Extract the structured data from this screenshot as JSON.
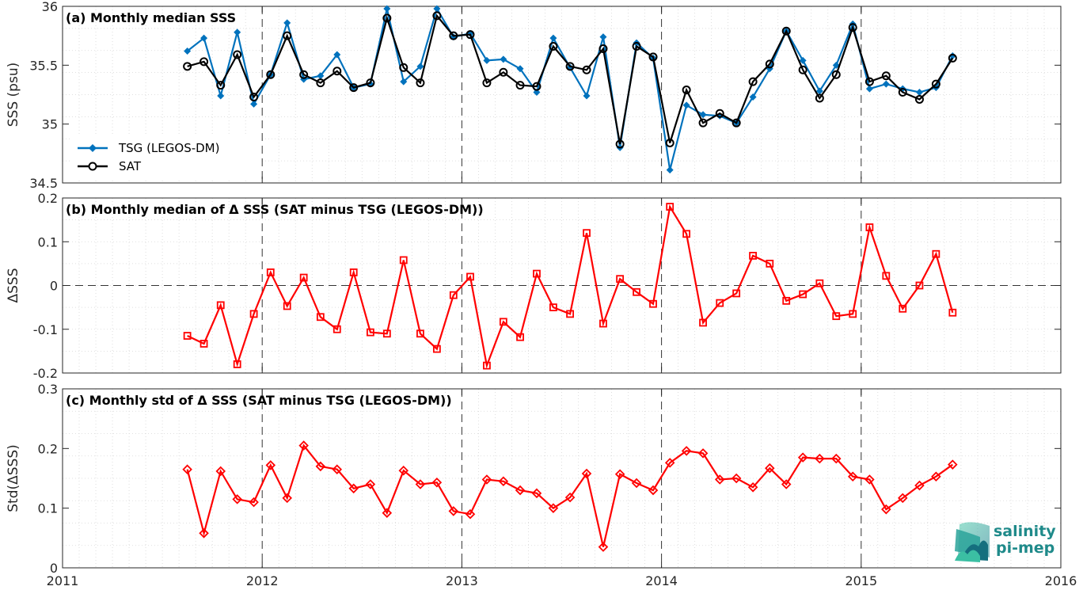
{
  "chart_data": [
    {
      "type": "line",
      "title": "(a) Monthly median SSS",
      "ylabel": "SSS (psu)",
      "xlim": [
        2011,
        2016
      ],
      "ylim": [
        34.5,
        36
      ],
      "yticks": [
        "34.5",
        "35",
        "35.5",
        "36"
      ],
      "xticks": [
        "2011",
        "2012",
        "2013",
        "2014",
        "2015",
        "2016"
      ],
      "grid": true,
      "legend_position": "bottom-left",
      "x": [
        2011.625,
        2011.708,
        2011.792,
        2011.875,
        2011.958,
        2012.042,
        2012.125,
        2012.208,
        2012.292,
        2012.375,
        2012.458,
        2012.542,
        2012.625,
        2012.708,
        2012.792,
        2012.875,
        2012.958,
        2013.042,
        2013.125,
        2013.208,
        2013.292,
        2013.375,
        2013.458,
        2013.542,
        2013.625,
        2013.708,
        2013.792,
        2013.875,
        2013.958,
        2014.042,
        2014.125,
        2014.208,
        2014.292,
        2014.375,
        2014.458,
        2014.542,
        2014.625,
        2014.708,
        2014.792,
        2014.875,
        2014.958,
        2015.042,
        2015.125,
        2015.208,
        2015.292,
        2015.375,
        2015.458
      ],
      "series": [
        {
          "name": "TSG (LEGOS-DM)",
          "color": "#0072BD",
          "marker": "diamond-filled",
          "values": [
            35.62,
            35.73,
            35.24,
            35.78,
            35.17,
            35.42,
            35.86,
            35.38,
            35.41,
            35.59,
            35.31,
            35.34,
            35.98,
            35.36,
            35.49,
            35.98,
            35.74,
            35.77,
            35.54,
            35.55,
            35.47,
            35.27,
            35.73,
            35.48,
            35.24,
            35.74,
            34.8,
            35.69,
            35.56,
            34.61,
            35.16,
            35.08,
            35.07,
            35.01,
            35.23,
            35.47,
            35.79,
            35.54,
            35.28,
            35.5,
            35.85,
            35.3,
            35.34,
            35.3,
            35.27,
            35.31,
            35.58
          ]
        },
        {
          "name": "SAT",
          "color": "#000000",
          "marker": "circle-open",
          "values": [
            35.49,
            35.53,
            35.33,
            35.59,
            35.23,
            35.42,
            35.75,
            35.42,
            35.35,
            35.45,
            35.31,
            35.35,
            35.9,
            35.48,
            35.35,
            35.92,
            35.75,
            35.76,
            35.35,
            35.44,
            35.33,
            35.32,
            35.66,
            35.49,
            35.46,
            35.64,
            34.83,
            35.66,
            35.57,
            34.84,
            35.29,
            35.01,
            35.09,
            35.01,
            35.36,
            35.51,
            35.79,
            35.46,
            35.22,
            35.42,
            35.82,
            35.36,
            35.41,
            35.27,
            35.21,
            35.34,
            35.56
          ]
        }
      ]
    },
    {
      "type": "line",
      "title": "(b) Monthly median of Δ SSS (SAT minus TSG (LEGOS-DM))",
      "ylabel": "ΔSSS",
      "xlim": [
        2011,
        2016
      ],
      "ylim": [
        -0.2,
        0.2
      ],
      "yticks": [
        "-0.2",
        "-0.1",
        "0",
        "0.1",
        "0.2"
      ],
      "zero_line": true,
      "grid": true,
      "x": [
        2011.625,
        2011.708,
        2011.792,
        2011.875,
        2011.958,
        2012.042,
        2012.125,
        2012.208,
        2012.292,
        2012.375,
        2012.458,
        2012.542,
        2012.625,
        2012.708,
        2012.792,
        2012.875,
        2012.958,
        2013.042,
        2013.125,
        2013.208,
        2013.292,
        2013.375,
        2013.458,
        2013.542,
        2013.625,
        2013.708,
        2013.792,
        2013.875,
        2013.958,
        2014.042,
        2014.125,
        2014.208,
        2014.292,
        2014.375,
        2014.458,
        2014.542,
        2014.625,
        2014.708,
        2014.792,
        2014.875,
        2014.958,
        2015.042,
        2015.125,
        2015.208,
        2015.292,
        2015.375,
        2015.458
      ],
      "series": [
        {
          "color": "#FF0000",
          "marker": "square-open",
          "values": [
            -0.115,
            -0.133,
            -0.045,
            -0.18,
            -0.065,
            0.03,
            -0.047,
            0.018,
            -0.072,
            -0.1,
            0.03,
            -0.107,
            -0.11,
            0.058,
            -0.11,
            -0.145,
            -0.022,
            0.02,
            -0.183,
            -0.083,
            -0.118,
            0.027,
            -0.05,
            -0.065,
            0.12,
            -0.087,
            0.015,
            -0.015,
            -0.042,
            0.18,
            0.118,
            -0.085,
            -0.04,
            -0.018,
            0.068,
            0.05,
            -0.035,
            -0.02,
            0.005,
            -0.07,
            -0.065,
            0.133,
            0.022,
            -0.053,
            0.0,
            0.072,
            -0.062
          ]
        }
      ]
    },
    {
      "type": "line",
      "title": "(c) Monthly std of Δ SSS (SAT minus TSG (LEGOS-DM))",
      "ylabel": "Std(ΔSSS)",
      "xlim": [
        2011,
        2016
      ],
      "ylim": [
        0,
        0.3
      ],
      "yticks": [
        "0",
        "0.1",
        "0.2",
        "0.3"
      ],
      "grid": true,
      "x": [
        2011.625,
        2011.708,
        2011.792,
        2011.875,
        2011.958,
        2012.042,
        2012.125,
        2012.208,
        2012.292,
        2012.375,
        2012.458,
        2012.542,
        2012.625,
        2012.708,
        2012.792,
        2012.875,
        2012.958,
        2013.042,
        2013.125,
        2013.208,
        2013.292,
        2013.375,
        2013.458,
        2013.542,
        2013.625,
        2013.708,
        2013.792,
        2013.875,
        2013.958,
        2014.042,
        2014.125,
        2014.208,
        2014.292,
        2014.375,
        2014.458,
        2014.542,
        2014.625,
        2014.708,
        2014.792,
        2014.875,
        2014.958,
        2015.042,
        2015.125,
        2015.208,
        2015.292,
        2015.375,
        2015.458
      ],
      "series": [
        {
          "color": "#FF0000",
          "marker": "diamond-open",
          "values": [
            0.165,
            0.058,
            0.162,
            0.115,
            0.11,
            0.172,
            0.117,
            0.205,
            0.17,
            0.165,
            0.133,
            0.14,
            0.092,
            0.163,
            0.14,
            0.143,
            0.095,
            0.09,
            0.148,
            0.145,
            0.13,
            0.125,
            0.1,
            0.118,
            0.158,
            0.035,
            0.157,
            0.142,
            0.13,
            0.176,
            0.196,
            0.192,
            0.148,
            0.15,
            0.135,
            0.167,
            0.14,
            0.185,
            0.183,
            0.183,
            0.153,
            0.148,
            0.098,
            0.117,
            0.138,
            0.153,
            0.173
          ]
        }
      ]
    }
  ],
  "logo": {
    "line1": "salinity",
    "line2": "pi-mep"
  }
}
